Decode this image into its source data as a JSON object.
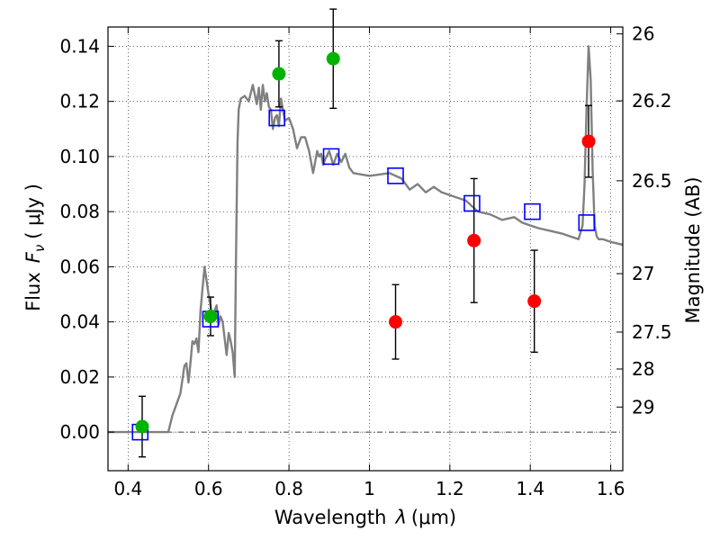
{
  "chart_data": {
    "type": "scatter",
    "xlabel": "Wavelength",
    "xlabel_symbol": "λ",
    "xlabel_unit": "(μm)",
    "ylabel": "Flux",
    "ylabel_symbol": "F",
    "ylabel_subscript": "ν",
    "ylabel_unit": "( μJy )",
    "y2label": "Magnitude (AB)",
    "xlim": [
      0.35,
      1.63
    ],
    "ylim": [
      -0.014,
      0.147
    ],
    "grid": true,
    "grid_style": "dotted",
    "x_ticks": [
      {
        "value": 0.4,
        "label": "0.4"
      },
      {
        "value": 0.6,
        "label": "0.6"
      },
      {
        "value": 0.8,
        "label": "0.8"
      },
      {
        "value": 1.0,
        "label": "1"
      },
      {
        "value": 1.2,
        "label": "1.2"
      },
      {
        "value": 1.4,
        "label": "1.4"
      },
      {
        "value": 1.6,
        "label": "1.6"
      }
    ],
    "y_ticks": [
      {
        "value": 0.0,
        "label": "0.00"
      },
      {
        "value": 0.02,
        "label": "0.02"
      },
      {
        "value": 0.04,
        "label": "0.04"
      },
      {
        "value": 0.06,
        "label": "0.06"
      },
      {
        "value": 0.08,
        "label": "0.08"
      },
      {
        "value": 0.1,
        "label": "0.10"
      },
      {
        "value": 0.12,
        "label": "0.12"
      },
      {
        "value": 0.14,
        "label": "0.14"
      }
    ],
    "y2_ticks": [
      {
        "label": "26",
        "flux": 0.1445
      },
      {
        "label": "26.2",
        "flux": 0.1202
      },
      {
        "label": "26.5",
        "flux": 0.0912
      },
      {
        "label": "27",
        "flux": 0.0575
      },
      {
        "label": "27.5",
        "flux": 0.0363
      },
      {
        "label": "28",
        "flux": 0.0229
      },
      {
        "label": "29",
        "flux": 0.0091
      }
    ],
    "model_curve": {
      "color": "#808080",
      "x": [
        0.35,
        0.5,
        0.51,
        0.53,
        0.54,
        0.545,
        0.55,
        0.555,
        0.56,
        0.565,
        0.57,
        0.575,
        0.58,
        0.585,
        0.59,
        0.595,
        0.6,
        0.605,
        0.61,
        0.615,
        0.62,
        0.625,
        0.63,
        0.635,
        0.64,
        0.645,
        0.65,
        0.655,
        0.66,
        0.665,
        0.668,
        0.672,
        0.675,
        0.68,
        0.69,
        0.7,
        0.71,
        0.72,
        0.725,
        0.73,
        0.735,
        0.74,
        0.745,
        0.75,
        0.755,
        0.76,
        0.765,
        0.77,
        0.775,
        0.78,
        0.79,
        0.8,
        0.81,
        0.82,
        0.83,
        0.84,
        0.85,
        0.86,
        0.87,
        0.875,
        0.88,
        0.885,
        0.89,
        0.9,
        0.91,
        0.92,
        0.93,
        0.94,
        0.95,
        0.96,
        1.0,
        1.05,
        1.08,
        1.1,
        1.12,
        1.14,
        1.16,
        1.18,
        1.2,
        1.22,
        1.24,
        1.27,
        1.3,
        1.33,
        1.36,
        1.38,
        1.4,
        1.42,
        1.45,
        1.48,
        1.5,
        1.52,
        1.53,
        1.535,
        1.54,
        1.545,
        1.55,
        1.555,
        1.56,
        1.565,
        1.57,
        1.58,
        1.6,
        1.63
      ],
      "y": [
        0.0,
        0.0,
        0.006,
        0.014,
        0.024,
        0.025,
        0.018,
        0.025,
        0.033,
        0.032,
        0.034,
        0.029,
        0.044,
        0.052,
        0.06,
        0.055,
        0.05,
        0.046,
        0.04,
        0.044,
        0.046,
        0.039,
        0.042,
        0.04,
        0.034,
        0.028,
        0.036,
        0.033,
        0.029,
        0.02,
        0.06,
        0.105,
        0.117,
        0.121,
        0.122,
        0.12,
        0.126,
        0.119,
        0.125,
        0.117,
        0.126,
        0.12,
        0.123,
        0.118,
        0.117,
        0.11,
        0.114,
        0.115,
        0.111,
        0.121,
        0.113,
        0.114,
        0.11,
        0.103,
        0.107,
        0.107,
        0.102,
        0.094,
        0.102,
        0.1,
        0.101,
        0.097,
        0.099,
        0.102,
        0.097,
        0.101,
        0.098,
        0.101,
        0.096,
        0.094,
        0.093,
        0.094,
        0.092,
        0.088,
        0.09,
        0.087,
        0.089,
        0.087,
        0.086,
        0.085,
        0.084,
        0.08,
        0.079,
        0.077,
        0.078,
        0.076,
        0.075,
        0.074,
        0.073,
        0.072,
        0.071,
        0.07,
        0.075,
        0.09,
        0.118,
        0.14,
        0.128,
        0.095,
        0.075,
        0.071,
        0.07,
        0.07,
        0.069,
        0.068
      ]
    },
    "series": [
      {
        "marker": "square",
        "color": "#0000ff",
        "points": [
          {
            "x": 0.43,
            "y": 0.0
          },
          {
            "x": 0.605,
            "y": 0.041
          },
          {
            "x": 0.77,
            "y": 0.114
          },
          {
            "x": 0.905,
            "y": 0.1
          },
          {
            "x": 1.065,
            "y": 0.093
          },
          {
            "x": 1.255,
            "y": 0.083
          },
          {
            "x": 1.405,
            "y": 0.08
          },
          {
            "x": 1.54,
            "y": 0.076
          }
        ]
      },
      {
        "marker": "circle",
        "color": "#00b300",
        "points": [
          {
            "x": 0.435,
            "y": 0.002,
            "err": 0.011
          },
          {
            "x": 0.605,
            "y": 0.042,
            "err": 0.007
          },
          {
            "x": 0.775,
            "y": 0.13,
            "err": 0.012
          },
          {
            "x": 0.91,
            "y": 0.1355,
            "err": 0.018
          }
        ]
      },
      {
        "marker": "circle",
        "color": "#ff0000",
        "points": [
          {
            "x": 1.065,
            "y": 0.04,
            "err": 0.0135
          },
          {
            "x": 1.26,
            "y": 0.0695,
            "err": 0.0225
          },
          {
            "x": 1.41,
            "y": 0.0475,
            "err": 0.0185
          },
          {
            "x": 1.545,
            "y": 0.1055,
            "err": 0.013
          }
        ]
      }
    ]
  }
}
